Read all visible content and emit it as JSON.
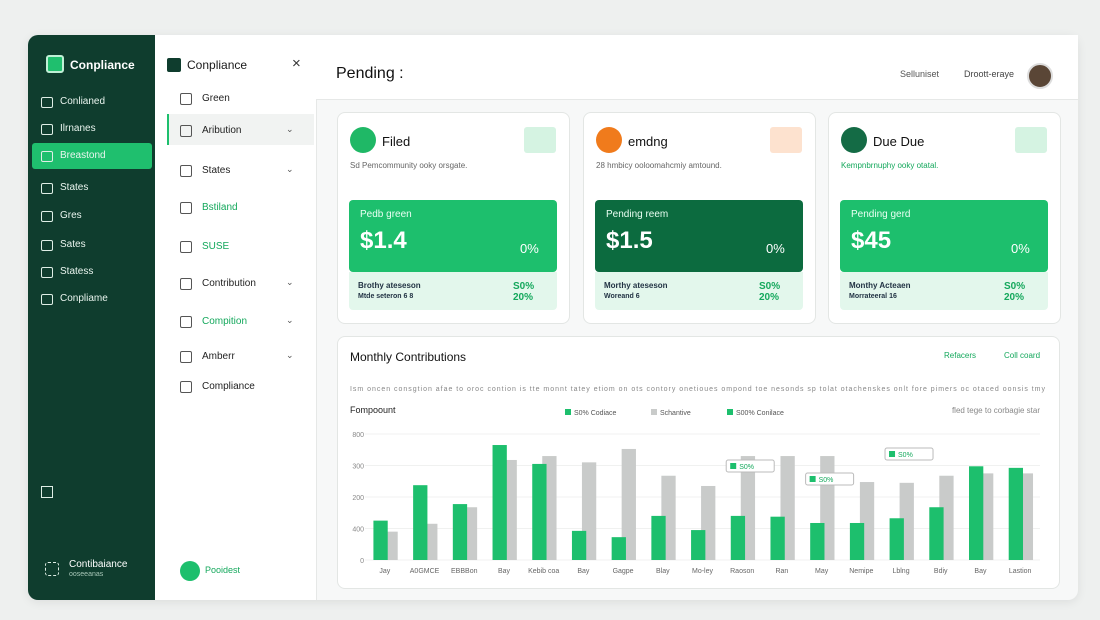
{
  "sidebar": {
    "brand": "Conpliance",
    "items": [
      "Conlianed",
      "Ilrnanes",
      "Breastond",
      "States",
      "Gres",
      "Sates",
      "Statess",
      "Conpliame"
    ],
    "active": 2,
    "footer_title": "Contibaiance",
    "footer_sub": "ooseeanas"
  },
  "subnav": {
    "title": "Conpliance",
    "items": [
      {
        "label": "Green",
        "green": false,
        "chevron": false
      },
      {
        "label": "Aribution",
        "green": false,
        "chevron": true
      },
      {
        "label": "States",
        "green": false,
        "chevron": true
      },
      {
        "label": "Bstiland",
        "green": true,
        "chevron": false
      },
      {
        "label": "SUSE",
        "green": true,
        "chevron": false
      },
      {
        "label": "Contribution",
        "green": false,
        "chevron": true
      },
      {
        "label": "Compition",
        "green": true,
        "chevron": true
      },
      {
        "label": "Amberr",
        "green": false,
        "chevron": true
      },
      {
        "label": "Compliance",
        "green": false,
        "chevron": false
      }
    ],
    "selected": 1,
    "footer": "Pooidest"
  },
  "header": {
    "title": "Pending :",
    "links": [
      "Selluniset",
      "Droott-eraye"
    ]
  },
  "cards": [
    {
      "title": "Filed",
      "icon_color": "#1fb866",
      "badge_color": "#d5f3e2",
      "subtitle": "Sd Pemcommunity ooky orsgate.",
      "box_label": "Pedb green",
      "amount": "$1.4",
      "percent": "0%",
      "box_color": "#1dbf6d",
      "foot": [
        "Brothy ateseson",
        "Mtde seteron 6 8"
      ],
      "foot_right": [
        "S0%",
        "20%"
      ]
    },
    {
      "title": "emdng",
      "icon_color": "#f07b1c",
      "badge_color": "#fde2cf",
      "subtitle": "28 hmbicy ooloomahcmiy amtound.",
      "box_label": "Pending reem",
      "amount": "$1.5",
      "percent": "0%",
      "box_color": "#0c6b3f",
      "foot": [
        "Morthy ateseson",
        "Woreand 6"
      ],
      "foot_right": [
        "S0%",
        "20%"
      ]
    },
    {
      "title": "Due Due",
      "icon_color": "#146b45",
      "badge_color": "#d5f3e2",
      "subtitle": "Kempnbrnuphy ooky otatal.",
      "box_label": "Pending gerd",
      "amount": "$45",
      "percent": "0%",
      "box_color": "#1dbf6d",
      "foot": [
        "Monthy Acteaen",
        "Morrateeral 16"
      ],
      "foot_right": [
        "S0%",
        "20%"
      ]
    }
  ],
  "chart_data": {
    "type": "bar",
    "title": "Monthly Contributions",
    "actions": [
      "Refacers",
      "Coll coard"
    ],
    "description": "Ism oncen consgtion afae to oroc contion is tte monnt tatey etiom on ots contory onetioues ompond toe nesonds sp tolat otachenskes onlt fore pimers oc otaced oonsis tmy",
    "axis_label": "Fompoount",
    "note": "fled tege to corbagie star",
    "legend_extra": "S00% Conilace",
    "categories": [
      "Jay",
      "A0GMCE",
      "EBBBon",
      "Bay",
      "Kebib coa",
      "Bay",
      "Gagpe",
      "Blay",
      "Mo-ley",
      "Raoson",
      "Ran",
      "May",
      "Nemipe",
      "Lblng",
      "Bdiy",
      "Bay",
      "Lastion"
    ],
    "series": [
      {
        "name": "S0% Codiace",
        "color": "#1dbf6d",
        "values": [
          250,
          475,
          355,
          730,
          610,
          185,
          145,
          280,
          190,
          280,
          275,
          235,
          235,
          265,
          335,
          595,
          585
        ]
      },
      {
        "name": "Schantive",
        "color": "#c9cbca",
        "values": [
          180,
          230,
          335,
          635,
          660,
          620,
          705,
          535,
          470,
          660,
          660,
          660,
          495,
          490,
          535,
          550,
          550
        ]
      }
    ],
    "y_labels": [
      "800",
      "300",
      "200",
      "400",
      "0"
    ],
    "ylim": [
      0,
      800
    ],
    "grid": true,
    "annotations": [
      {
        "label": "S0%",
        "category": 9
      },
      {
        "label": "S0%",
        "category": 11
      },
      {
        "label": "S0%",
        "category": 13
      }
    ]
  }
}
